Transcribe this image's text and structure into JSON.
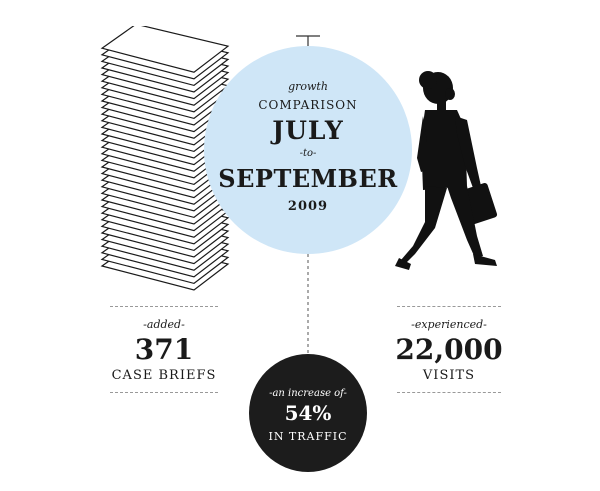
{
  "header": {
    "line1": "growth",
    "line2": "COMPARISON",
    "line3": "JULY",
    "line4": "-to-",
    "line5": "SEPTEMBER",
    "line6": "2009"
  },
  "left_stat": {
    "label": "-added-",
    "value": "371",
    "unit": "CASE BRIEFS"
  },
  "right_stat": {
    "label": "-experienced-",
    "value": "22,000",
    "unit": "VISITS"
  },
  "traffic": {
    "label": "-an increase of-",
    "value": "54%",
    "unit": "IN TRAFFIC"
  },
  "colors": {
    "circle_blue": "#cfe6f7",
    "dark": "#1c1c1c"
  },
  "icons": [
    "paper-stack-icon",
    "businesswoman-silhouette-icon"
  ]
}
